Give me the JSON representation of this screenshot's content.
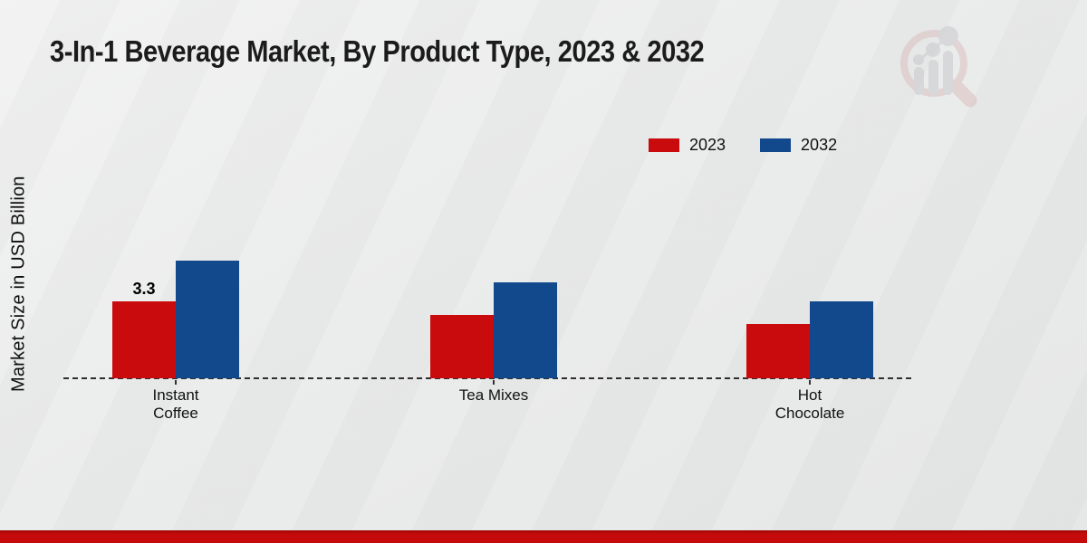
{
  "title": "3-In-1 Beverage Market, By Product Type, 2023 & 2032",
  "y_axis_label": "Market Size in USD Billion",
  "legend": {
    "position": "top-right",
    "items": [
      {
        "label": "2023",
        "color": "#c90b0d"
      },
      {
        "label": "2032",
        "color": "#11498c"
      }
    ]
  },
  "chart_data": {
    "type": "bar",
    "categories": [
      "Instant Coffee",
      "Tea Mixes",
      "Hot Chocolate"
    ],
    "x_tick_display": [
      "Instant\nCoffee",
      "Tea Mixes",
      "Hot\nChocolate"
    ],
    "series": [
      {
        "name": "2023",
        "color": "#c90b0d",
        "values": [
          3.3,
          2.7,
          2.3
        ]
      },
      {
        "name": "2032",
        "color": "#11498c",
        "values": [
          5.0,
          4.1,
          3.3
        ]
      }
    ],
    "bar_labels": [
      {
        "series_index": 0,
        "category_index": 0,
        "text": "3.3"
      }
    ],
    "title": "3-In-1 Beverage Market, By Product Type, 2023 & 2032",
    "xlabel": "",
    "ylabel": "Market Size in USD Billion",
    "ylim": [
      0,
      5.5
    ],
    "grid": false,
    "baseline_style": "dashed",
    "legend_position": "top-right"
  },
  "branding": {
    "watermark_icon": "magnifier-bar-chart-watermark",
    "footer_accent_color": "#c40a0a"
  }
}
